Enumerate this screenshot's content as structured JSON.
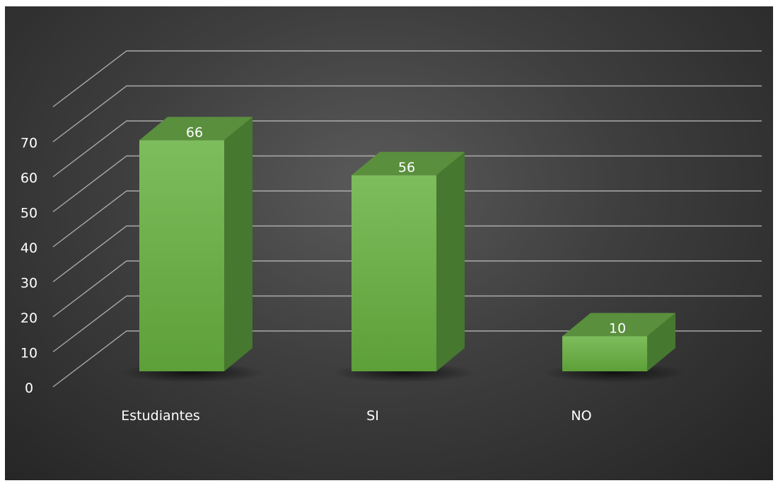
{
  "chart_data": {
    "type": "bar",
    "style": "3d-column",
    "categories": [
      "Estudiantes",
      "SI",
      "NO"
    ],
    "values": [
      66,
      56,
      10
    ],
    "data_labels": [
      "66",
      "56",
      "10"
    ],
    "ylim": [
      0,
      80
    ],
    "yticks": [
      "0",
      "10",
      "20",
      "30",
      "40",
      "50",
      "60",
      "70"
    ],
    "ytick_values": [
      0,
      10,
      20,
      30,
      40,
      50,
      60,
      70
    ],
    "grid": true,
    "legend": "none",
    "colors": {
      "background": "#3a3a3a",
      "grid": "#bdbdbd",
      "bar_front": "#6aae45",
      "bar_top": "#5a8f3d",
      "bar_side": "#46782f",
      "text": "#ffffff"
    }
  }
}
